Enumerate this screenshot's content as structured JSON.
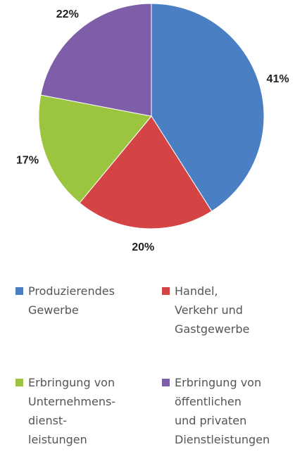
{
  "chart_data": {
    "type": "pie",
    "categories": [
      "Produzierendes\nGewerbe",
      "Handel,\nVerkehr und\nGastgewerbe",
      "Erbringung von\nUnternehmens-\ndienst-\nleistungen",
      "Erbringung von\nöffentlichen\nund privaten\nDienstleistungen"
    ],
    "values": [
      41,
      20,
      17,
      22
    ],
    "value_labels": [
      "41%",
      "20%",
      "17%",
      "22%"
    ],
    "colors": [
      "#4a7fc4",
      "#d44444",
      "#9bc43f",
      "#7e5ea8"
    ]
  }
}
